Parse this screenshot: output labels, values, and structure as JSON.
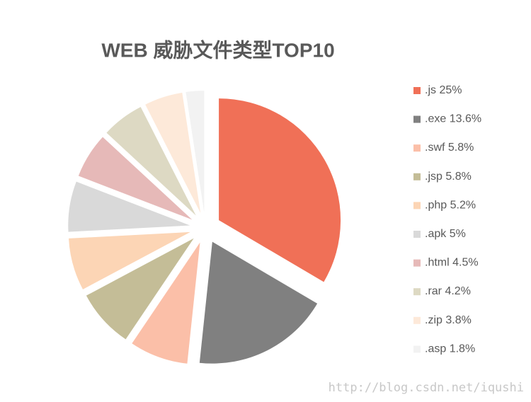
{
  "chart_data": {
    "type": "pie",
    "title": "WEB 威胁文件类型TOP10",
    "categories": [
      ".js",
      ".exe",
      ".swf",
      ".jsp",
      ".php",
      ".apk",
      ".html",
      ".rar",
      ".zip",
      ".asp"
    ],
    "values": [
      25,
      13.6,
      5.8,
      5.8,
      5.2,
      5,
      4.5,
      4.2,
      3.8,
      1.8
    ],
    "value_labels": [
      "25%",
      "13.6%",
      "5.8%",
      "5.8%",
      "5.2%",
      "5%",
      "4.5%",
      "4.2%",
      "3.8%",
      "1.8%"
    ],
    "colors": [
      "#f07057",
      "#808080",
      "#fbbfa8",
      "#c4bd97",
      "#fcd5b5",
      "#d9d9d9",
      "#e6b9b8",
      "#ddd9c3",
      "#fde9d9",
      "#f2f2f2"
    ],
    "legend": "right",
    "watermark": "http://blog.csdn.net/iqushi"
  }
}
